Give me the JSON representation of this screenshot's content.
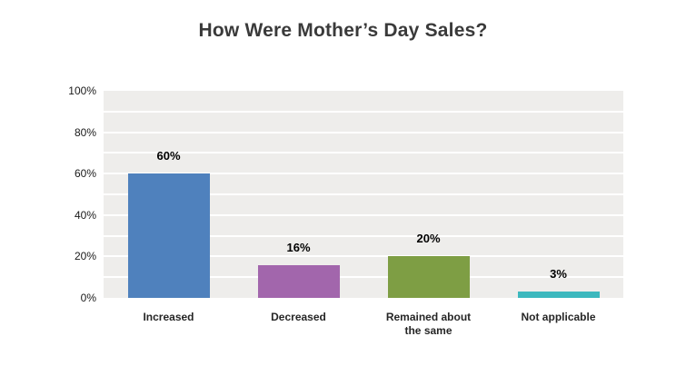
{
  "title": "How Were Mother’s Day Sales?",
  "chart_data": {
    "type": "bar",
    "title": "How Were Mother’s Day Sales?",
    "categories": [
      "Increased",
      "Decreased",
      "Remained about the same",
      "Not applicable"
    ],
    "values": [
      60,
      16,
      20,
      3
    ],
    "value_labels": [
      "60%",
      "16%",
      "20%",
      "3%"
    ],
    "bar_colors": [
      "#4f81bd",
      "#a266ac",
      "#7e9e44",
      "#3cb8be"
    ],
    "xlabel": "",
    "ylabel": "",
    "ylim": [
      0,
      100
    ],
    "ytick_step": 20,
    "ytick_labels": [
      "0%",
      "20%",
      "40%",
      "60%",
      "80%",
      "100%"
    ],
    "grid": "horizontal",
    "grid_step_percent": 10,
    "grid_color": "#ffffff",
    "plot_background": "#eeedeb",
    "legend": "none"
  },
  "colors": {
    "page_background": "#ffffff",
    "title_text": "#3a3a3a",
    "axis_text": "#1a1a1a",
    "category_text": "#262626",
    "value_label_text": "#000000"
  }
}
